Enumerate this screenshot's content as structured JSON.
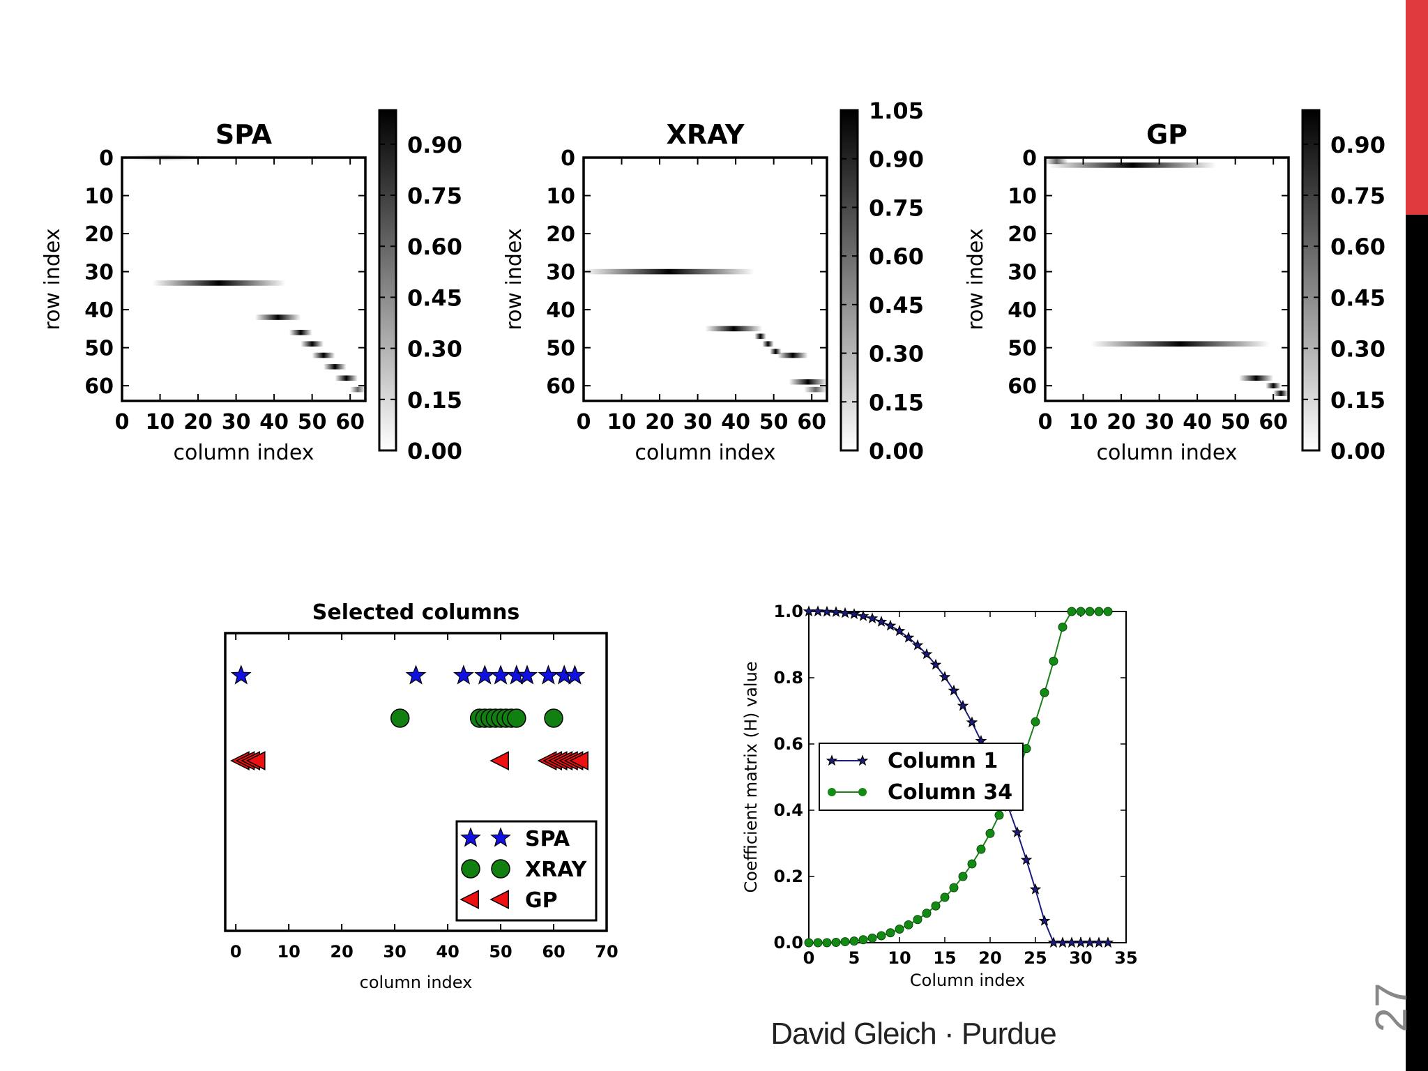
{
  "theme": {
    "accent_red": "#e0393e",
    "bar_black": "#000000"
  },
  "slide": {
    "number": "27",
    "footer": "David Gleich · Purdue"
  },
  "chart_data": [
    {
      "type": "heatmap",
      "title": "SPA",
      "xlabel": "column index",
      "ylabel": "row index",
      "xticks": [
        "0",
        "10",
        "20",
        "30",
        "40",
        "50",
        "60"
      ],
      "yticks": [
        "0",
        "10",
        "20",
        "30",
        "40",
        "50",
        "60"
      ],
      "colorbar_ticks": [
        "0.00",
        "0.15",
        "0.30",
        "0.45",
        "0.60",
        "0.75",
        "0.90"
      ],
      "colorbar_range": [
        0,
        1.0
      ],
      "segments": [
        {
          "row": 0,
          "col_start": 0,
          "col_end": 22,
          "peak": 0.2
        },
        {
          "row": 33,
          "col_start": 8,
          "col_end": 42,
          "peak": 1.0
        },
        {
          "row": 42,
          "col_start": 35,
          "col_end": 46,
          "peak": 1.0
        },
        {
          "row": 46,
          "col_start": 44,
          "col_end": 49,
          "peak": 1.0
        },
        {
          "row": 49,
          "col_start": 47,
          "col_end": 52,
          "peak": 1.0
        },
        {
          "row": 52,
          "col_start": 50,
          "col_end": 55,
          "peak": 1.0
        },
        {
          "row": 55,
          "col_start": 53,
          "col_end": 58,
          "peak": 1.0
        },
        {
          "row": 58,
          "col_start": 56,
          "col_end": 61,
          "peak": 1.0
        },
        {
          "row": 61,
          "col_start": 60,
          "col_end": 63,
          "peak": 0.6
        }
      ]
    },
    {
      "type": "heatmap",
      "title": "XRAY",
      "xlabel": "column index",
      "ylabel": "row index",
      "xticks": [
        "0",
        "10",
        "20",
        "30",
        "40",
        "50",
        "60"
      ],
      "yticks": [
        "0",
        "10",
        "20",
        "30",
        "40",
        "50",
        "60"
      ],
      "colorbar_ticks": [
        "0.00",
        "0.15",
        "0.30",
        "0.45",
        "0.60",
        "0.75",
        "0.90",
        "1.05"
      ],
      "colorbar_range": [
        0,
        1.05
      ],
      "segments": [
        {
          "row": 30,
          "col_start": 0,
          "col_end": 44,
          "peak": 1.0
        },
        {
          "row": 45,
          "col_start": 32,
          "col_end": 46,
          "peak": 1.0
        },
        {
          "row": 47,
          "col_start": 45,
          "col_end": 47,
          "peak": 1.0
        },
        {
          "row": 49,
          "col_start": 47,
          "col_end": 49,
          "peak": 1.0
        },
        {
          "row": 51,
          "col_start": 49,
          "col_end": 51,
          "peak": 1.0
        },
        {
          "row": 52,
          "col_start": 51,
          "col_end": 58,
          "peak": 1.0
        },
        {
          "row": 59,
          "col_start": 54,
          "col_end": 63,
          "peak": 1.0
        },
        {
          "row": 61,
          "col_start": 58,
          "col_end": 63,
          "peak": 0.6
        }
      ]
    },
    {
      "type": "heatmap",
      "title": "GP",
      "xlabel": "column index",
      "ylabel": "row index",
      "xticks": [
        "0",
        "10",
        "20",
        "30",
        "40",
        "50",
        "60"
      ],
      "yticks": [
        "0",
        "10",
        "20",
        "30",
        "40",
        "50",
        "60"
      ],
      "colorbar_ticks": [
        "0.00",
        "0.15",
        "0.30",
        "0.45",
        "0.60",
        "0.75",
        "0.90"
      ],
      "colorbar_range": [
        0,
        1.0
      ],
      "segments": [
        {
          "row": 1,
          "col_start": 0,
          "col_end": 5,
          "peak": 0.6
        },
        {
          "row": 2,
          "col_start": 1,
          "col_end": 44,
          "peak": 1.0
        },
        {
          "row": 49,
          "col_start": 12,
          "col_end": 58,
          "peak": 1.0
        },
        {
          "row": 58,
          "col_start": 51,
          "col_end": 59,
          "peak": 1.0
        },
        {
          "row": 60,
          "col_start": 58,
          "col_end": 61,
          "peak": 1.0
        },
        {
          "row": 62,
          "col_start": 60,
          "col_end": 63,
          "peak": 1.0
        }
      ]
    },
    {
      "type": "scatter",
      "title": "Selected columns",
      "xlabel": "column index",
      "ylabel": "",
      "xlim": [
        -2,
        70
      ],
      "ylim": [
        -0.5,
        3.0
      ],
      "xticks": [
        "0",
        "10",
        "20",
        "30",
        "40",
        "50",
        "60",
        "70"
      ],
      "legend_position": "lower right",
      "series": [
        {
          "name": "SPA",
          "marker": "star",
          "color": "#1010e0",
          "y": 2.5,
          "x": [
            1,
            34,
            43,
            47,
            50,
            53,
            55,
            59,
            62,
            64
          ]
        },
        {
          "name": "XRAY",
          "marker": "circle",
          "color": "#118011",
          "y": 2.0,
          "x": [
            31,
            46,
            47,
            48,
            49,
            50,
            51,
            52,
            53,
            60
          ]
        },
        {
          "name": "GP",
          "marker": "triangle-left",
          "color": "#ee1111",
          "y": 1.5,
          "x": [
            1,
            2,
            3,
            4,
            50,
            59,
            60,
            61,
            62,
            63,
            64,
            65
          ]
        }
      ]
    },
    {
      "type": "line",
      "title": "",
      "xlabel": "Column index",
      "ylabel": "Coefficient matrix (H) value",
      "xlim": [
        0,
        35
      ],
      "ylim": [
        0,
        1.0
      ],
      "xticks": [
        "0",
        "5",
        "10",
        "15",
        "20",
        "25",
        "30",
        "35"
      ],
      "yticks": [
        "0.0",
        "0.2",
        "0.4",
        "0.6",
        "0.8",
        "1.0"
      ],
      "legend_position": "center left",
      "x": [
        0,
        1,
        2,
        3,
        4,
        5,
        6,
        7,
        8,
        9,
        10,
        11,
        12,
        13,
        14,
        15,
        16,
        17,
        18,
        19,
        20,
        21,
        22,
        23,
        24,
        25,
        26,
        27,
        28,
        29,
        30,
        31,
        32,
        33
      ],
      "series": [
        {
          "name": "Column 1",
          "marker": "star",
          "color": "#1a1a80",
          "values": [
            1.0,
            1.0,
            0.999,
            0.998,
            0.995,
            0.992,
            0.986,
            0.979,
            0.969,
            0.957,
            0.941,
            0.921,
            0.898,
            0.871,
            0.839,
            0.802,
            0.761,
            0.715,
            0.665,
            0.609,
            0.548,
            0.482,
            0.41,
            0.333,
            0.25,
            0.161,
            0.066,
            0.0,
            0.0,
            0.0,
            0.0,
            0.0,
            0.0,
            0.0
          ]
        },
        {
          "name": "Column 34",
          "marker": "circle",
          "color": "#1a801a",
          "values": [
            0.0,
            0.0,
            0.0,
            0.001,
            0.003,
            0.005,
            0.009,
            0.014,
            0.021,
            0.03,
            0.041,
            0.054,
            0.07,
            0.089,
            0.111,
            0.137,
            0.166,
            0.2,
            0.238,
            0.282,
            0.33,
            0.385,
            0.445,
            0.512,
            0.586,
            0.667,
            0.755,
            0.85,
            0.953,
            1.0,
            1.0,
            1.0,
            1.0,
            1.0
          ]
        }
      ]
    }
  ]
}
